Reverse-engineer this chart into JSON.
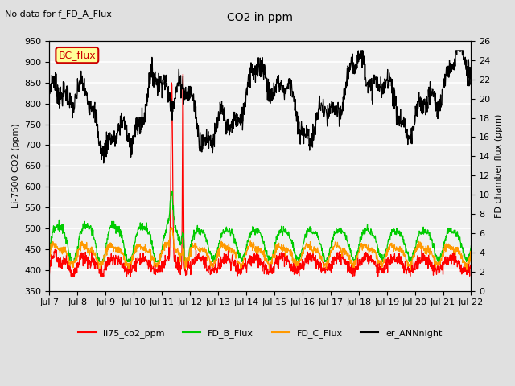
{
  "title": "CO2 in ppm",
  "top_left_text": "No data for f_FD_A_Flux",
  "xlabel_ticks": [
    "Jul 7",
    "Jul 8",
    "Jul 9",
    "Jul 10",
    "Jul 11",
    "Jul 12",
    "Jul 13",
    "Jul 14",
    "Jul 15",
    "Jul 16",
    "Jul 17",
    "Jul 18",
    "Jul 19",
    "Jul 20",
    "Jul 21",
    "Jul 22"
  ],
  "ylabel_left": "Li-7500 CO2 (ppm)",
  "ylabel_right": "FD chamber flux (ppm)",
  "ylim_left": [
    350,
    950
  ],
  "ylim_right": [
    0,
    26
  ],
  "yticks_left": [
    350,
    400,
    450,
    500,
    550,
    600,
    650,
    700,
    750,
    800,
    850,
    900,
    950
  ],
  "yticks_right": [
    0,
    2,
    4,
    6,
    8,
    10,
    12,
    14,
    16,
    18,
    20,
    22,
    24,
    26
  ],
  "bc_flux_box_color": "#ffff99",
  "bc_flux_border_color": "#cc0000",
  "bc_flux_text": "BC_flux",
  "legend_entries": [
    {
      "label": "li75_co2_ppm",
      "color": "#ff0000"
    },
    {
      "label": "FD_B_Flux",
      "color": "#00cc00"
    },
    {
      "label": "FD_C_Flux",
      "color": "#ff9900"
    },
    {
      "label": "er_ANNnight",
      "color": "#000000"
    }
  ],
  "background_color": "#e0e0e0",
  "plot_bg_color": "#f0f0f0",
  "grid_color": "#ffffff",
  "n_days": 15,
  "points_per_day": 96,
  "figsize": [
    6.4,
    4.8
  ],
  "dpi": 100
}
